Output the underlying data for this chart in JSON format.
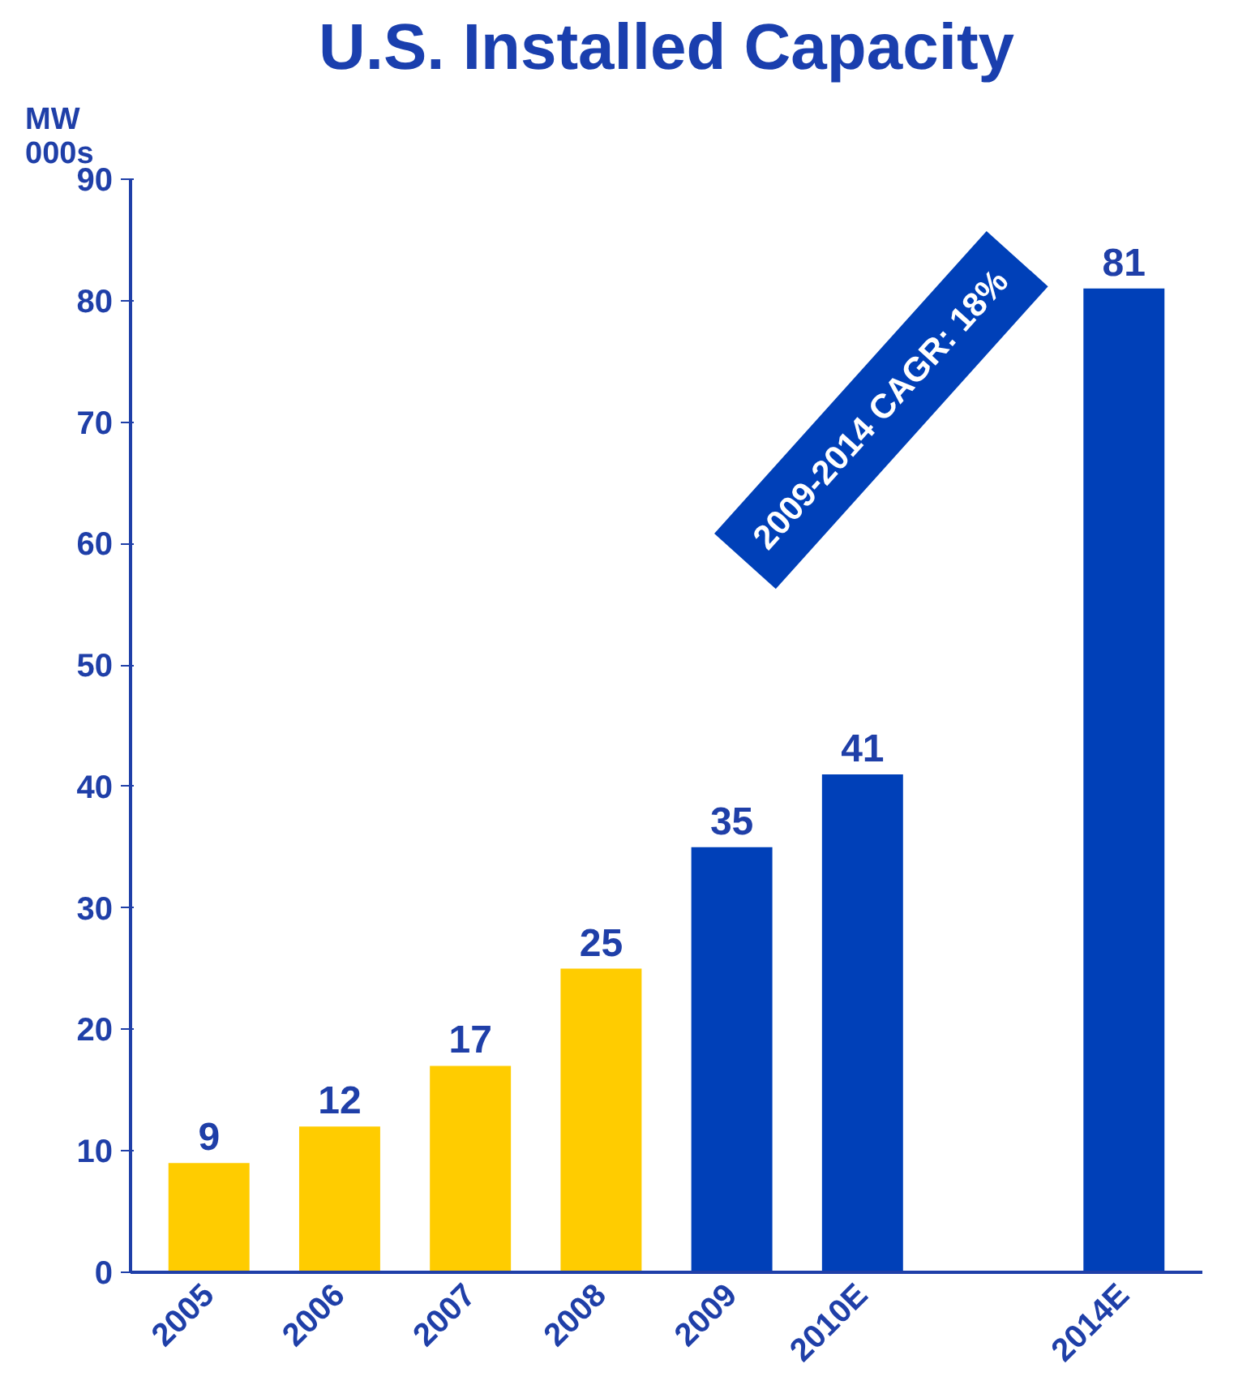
{
  "chart_data": {
    "type": "bar",
    "title": "U.S. Installed Capacity",
    "ylabel": "MW\n000s",
    "categories": [
      "2005",
      "2006",
      "2007",
      "2008",
      "2009",
      "2010E",
      null,
      "2014E"
    ],
    "values": [
      9,
      12,
      17,
      25,
      35,
      41,
      null,
      81
    ],
    "colors": [
      "#ffcc00",
      "#ffcc00",
      "#ffcc00",
      "#ffcc00",
      "#0040b8",
      "#0040b8",
      null,
      "#0040b8"
    ],
    "ylim": [
      0,
      90
    ],
    "yticks": [
      0,
      10,
      20,
      30,
      40,
      50,
      60,
      70,
      80,
      90
    ],
    "data_labels": true,
    "grid": false,
    "annotations": [
      "2009-2014 CAGR: 18%"
    ]
  }
}
